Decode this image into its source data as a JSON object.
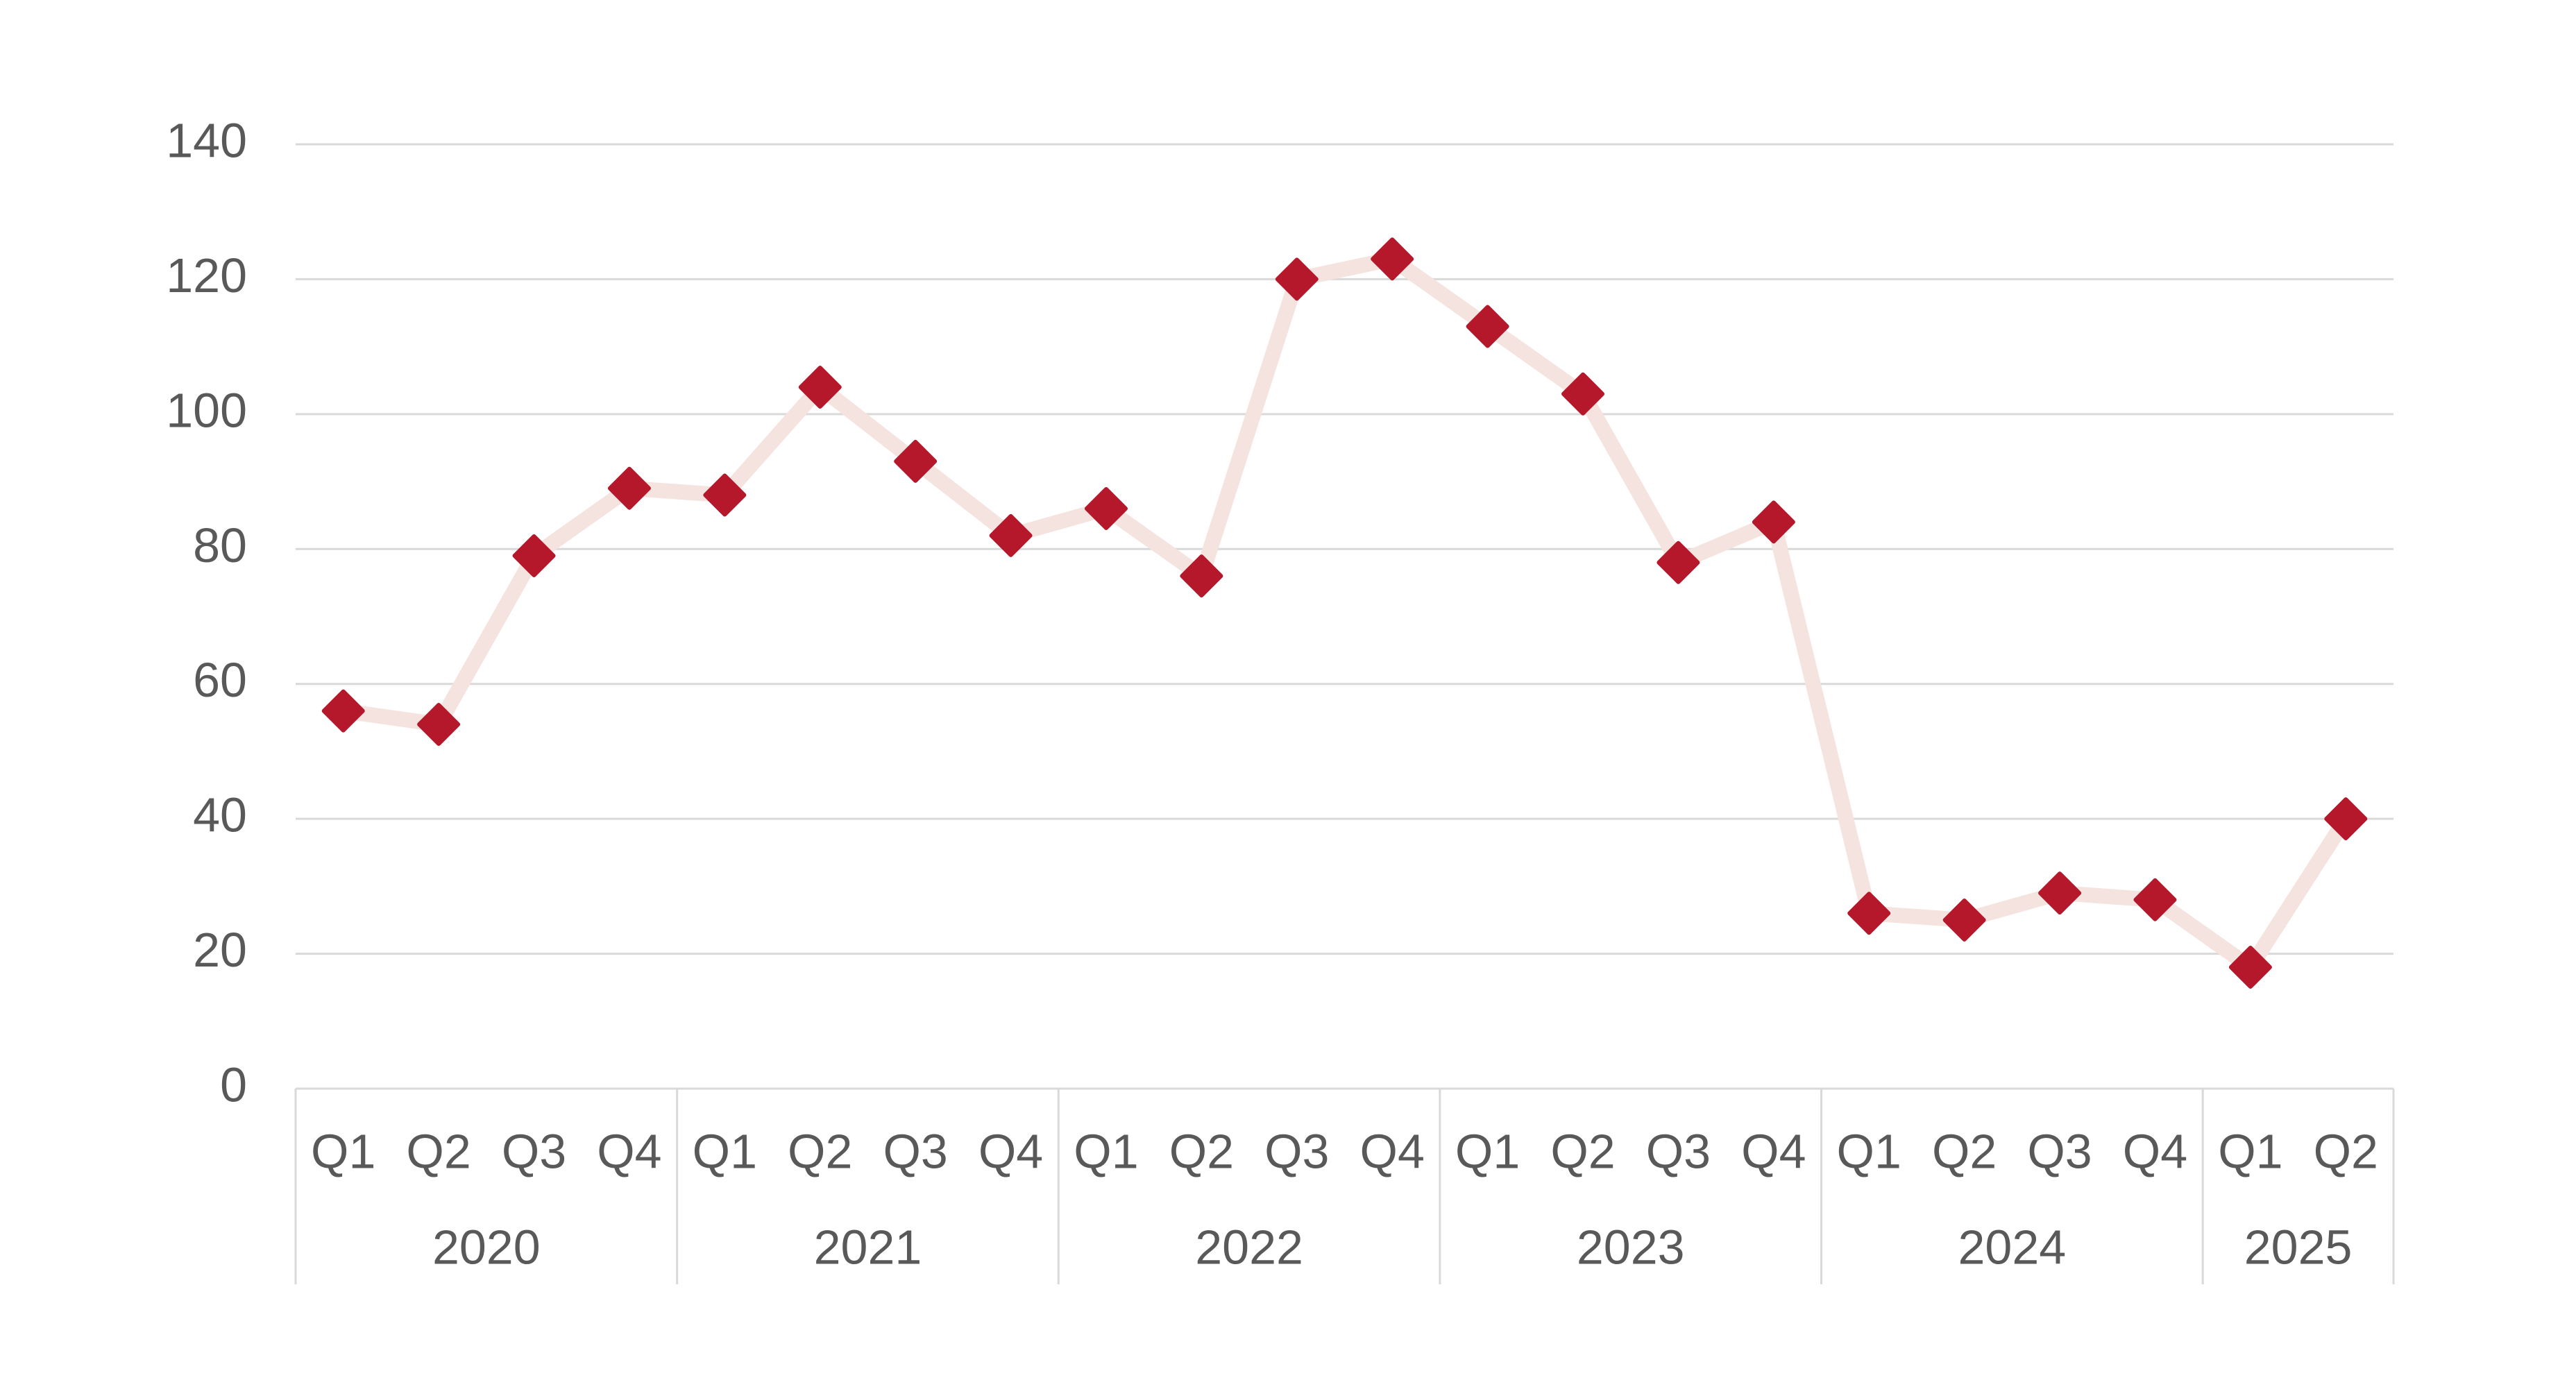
{
  "chart_data": {
    "type": "line",
    "categories": [
      "Q1",
      "Q2",
      "Q3",
      "Q4",
      "Q1",
      "Q2",
      "Q3",
      "Q4",
      "Q1",
      "Q2",
      "Q3",
      "Q4",
      "Q1",
      "Q2",
      "Q3",
      "Q4",
      "Q1",
      "Q2",
      "Q3",
      "Q4",
      "Q1",
      "Q2"
    ],
    "groups": [
      {
        "label": "2020",
        "count": 4
      },
      {
        "label": "2021",
        "count": 4
      },
      {
        "label": "2022",
        "count": 4
      },
      {
        "label": "2023",
        "count": 4
      },
      {
        "label": "2024",
        "count": 4
      },
      {
        "label": "2025",
        "count": 2
      }
    ],
    "values": [
      56,
      54,
      79,
      89,
      88,
      104,
      93,
      82,
      86,
      76,
      120,
      123,
      113,
      103,
      78,
      84,
      26,
      25,
      29,
      28,
      18,
      40
    ],
    "line_color": "#f5e3df",
    "marker_color": "#b5172b",
    "ylim": [
      0,
      140
    ],
    "yticks": [
      0,
      20,
      40,
      60,
      80,
      100,
      120,
      140
    ],
    "grid": true
  }
}
